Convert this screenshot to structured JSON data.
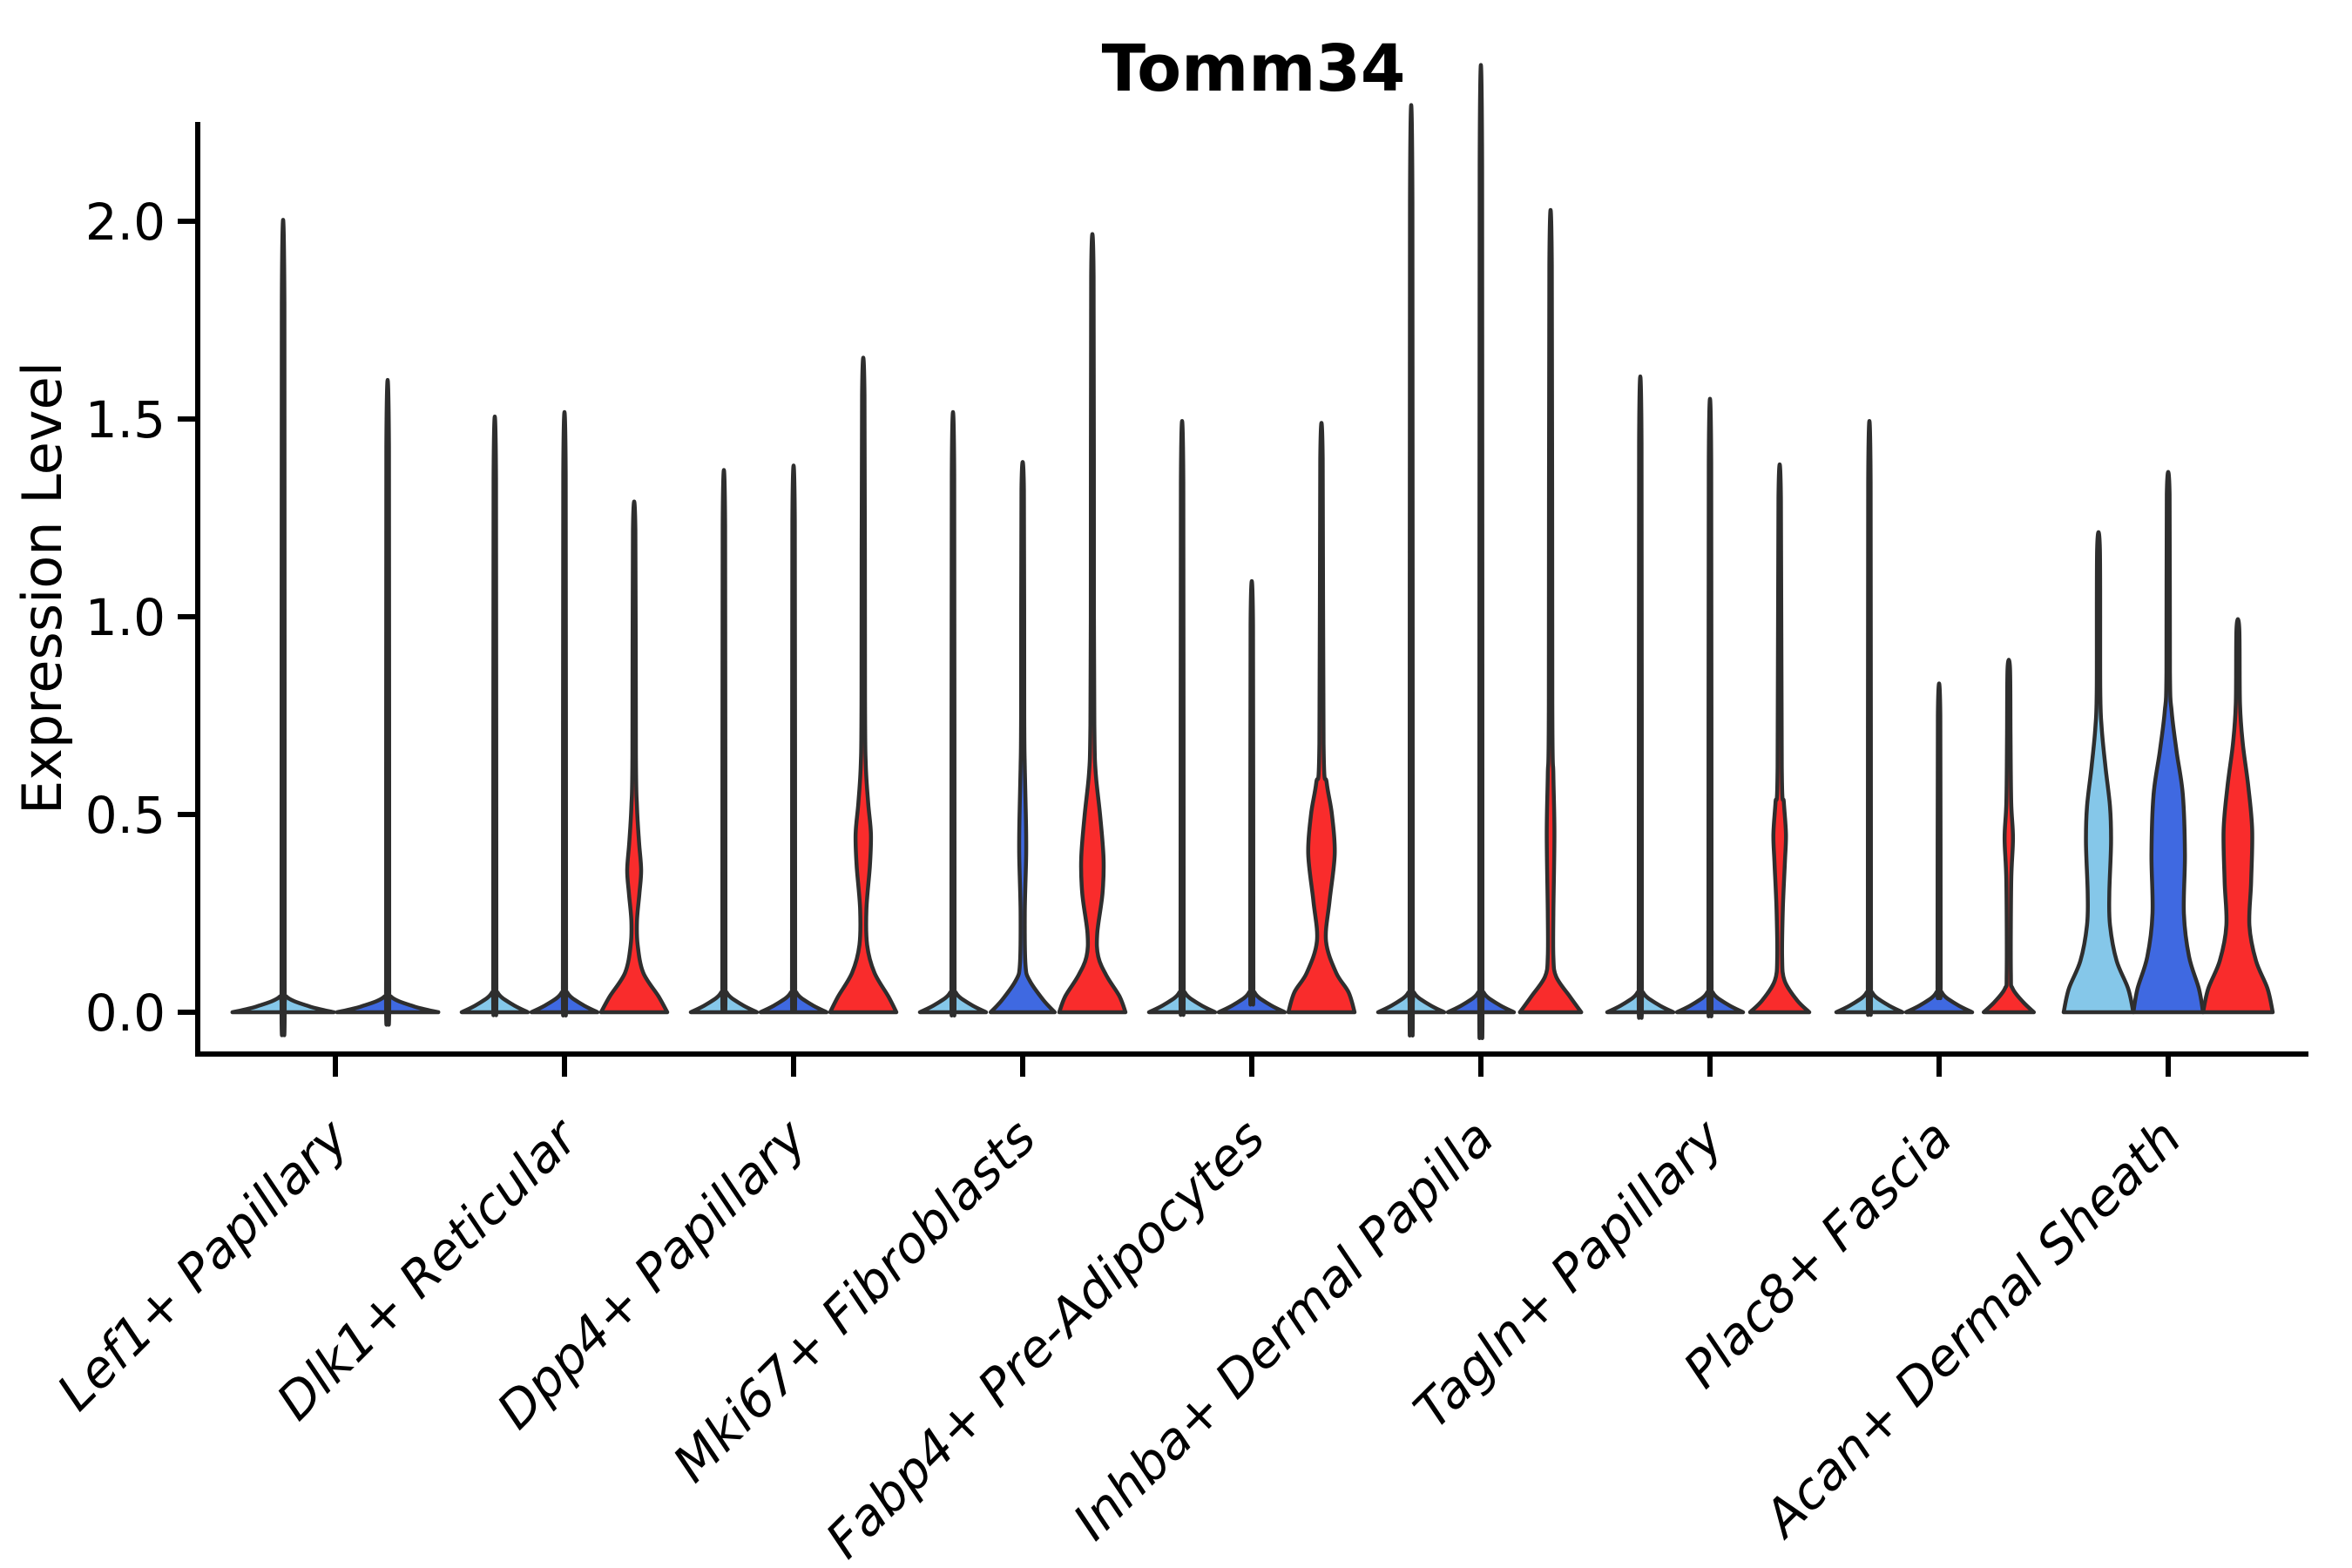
{
  "chart_data": {
    "type": "violin",
    "title": "Tomm34",
    "ylabel": "Expression Level",
    "xlabel": "",
    "grid": false,
    "legend": "none",
    "background": "#ffffff",
    "ylim": [
      -0.11,
      2.25
    ],
    "yticks": [
      "0.0",
      "0.5",
      "1.0",
      "1.5",
      "2.0"
    ],
    "ytick_values": [
      0.0,
      0.5,
      1.0,
      1.5,
      2.0
    ],
    "palette": {
      "light_blue": "#85C7E9",
      "blue": "#3F69E1",
      "red": "#F92C2C",
      "outline": "#2E2E2E",
      "axis": "#000000"
    },
    "categories": [
      "Lef1+ Papillary",
      "Dlk1+ Reticular",
      "Dpp4+ Papillary",
      "Mki67+ Fibroblasts",
      "Fabp4+ Pre-Adipocytes",
      "Inhba+ Dermal Papilla",
      "Tagln+ Papillary",
      "Plac8+ Fascia",
      "Acan+ Dermal Sheath"
    ],
    "groups": [
      {
        "category": "Lef1+ Papillary",
        "violins": [
          {
            "series": "light_blue",
            "max_expression": 1.79,
            "profile": [
              [
                0,
                0.97
              ],
              [
                0.015,
                0.5
              ],
              [
                0.04,
                0.06
              ],
              [
                0.08,
                0.03
              ],
              [
                1.79,
                0.025
              ]
            ]
          },
          {
            "series": "blue",
            "max_expression": 1.43,
            "profile": [
              [
                0,
                0.97
              ],
              [
                0.015,
                0.5
              ],
              [
                0.04,
                0.06
              ],
              [
                0.08,
                0.03
              ],
              [
                1.43,
                0.025
              ]
            ]
          }
        ]
      },
      {
        "category": "Dlk1+ Reticular",
        "violins": [
          {
            "series": "light_blue",
            "max_expression": 1.35,
            "profile": [
              [
                0,
                0.95
              ],
              [
                0.02,
                0.5
              ],
              [
                0.05,
                0.08
              ],
              [
                0.1,
                0.045
              ],
              [
                1.35,
                0.035
              ]
            ]
          },
          {
            "series": "blue",
            "max_expression": 1.36,
            "profile": [
              [
                0,
                0.95
              ],
              [
                0.02,
                0.5
              ],
              [
                0.05,
                0.08
              ],
              [
                0.1,
                0.045
              ],
              [
                1.36,
                0.035
              ]
            ]
          },
          {
            "series": "red",
            "max_expression": 1.22,
            "profile": [
              [
                0,
                0.95
              ],
              [
                0.04,
                0.7
              ],
              [
                0.1,
                0.26
              ],
              [
                0.17,
                0.1
              ],
              [
                0.23,
                0.08
              ],
              [
                0.3,
                0.15
              ],
              [
                0.36,
                0.2
              ],
              [
                0.43,
                0.14
              ],
              [
                0.52,
                0.08
              ],
              [
                0.65,
                0.05
              ],
              [
                1.22,
                0.035
              ]
            ]
          }
        ]
      },
      {
        "category": "Dpp4+ Papillary",
        "violins": [
          {
            "series": "light_blue",
            "max_expression": 1.23,
            "profile": [
              [
                0,
                0.95
              ],
              [
                0.02,
                0.5
              ],
              [
                0.05,
                0.08
              ],
              [
                0.1,
                0.045
              ],
              [
                1.23,
                0.035
              ]
            ]
          },
          {
            "series": "blue",
            "max_expression": 1.24,
            "profile": [
              [
                0,
                0.95
              ],
              [
                0.02,
                0.5
              ],
              [
                0.05,
                0.08
              ],
              [
                0.1,
                0.045
              ],
              [
                1.24,
                0.035
              ]
            ]
          },
          {
            "series": "red",
            "max_expression": 1.56,
            "profile": [
              [
                0,
                0.95
              ],
              [
                0.04,
                0.72
              ],
              [
                0.1,
                0.32
              ],
              [
                0.17,
                0.11
              ],
              [
                0.26,
                0.09
              ],
              [
                0.37,
                0.19
              ],
              [
                0.45,
                0.22
              ],
              [
                0.53,
                0.14
              ],
              [
                0.63,
                0.07
              ],
              [
                0.8,
                0.05
              ],
              [
                1.56,
                0.035
              ]
            ]
          }
        ]
      },
      {
        "category": "Mki67+ Fibroblasts",
        "violins": [
          {
            "series": "light_blue",
            "max_expression": 1.36,
            "profile": [
              [
                0,
                0.95
              ],
              [
                0.02,
                0.5
              ],
              [
                0.05,
                0.08
              ],
              [
                0.1,
                0.045
              ],
              [
                1.36,
                0.035
              ]
            ]
          },
          {
            "series": "blue",
            "max_expression": 1.32,
            "profile": [
              [
                0,
                0.92
              ],
              [
                0.03,
                0.6
              ],
              [
                0.08,
                0.2
              ],
              [
                0.12,
                0.08
              ],
              [
                0.25,
                0.06
              ],
              [
                0.4,
                0.1
              ],
              [
                0.5,
                0.09
              ],
              [
                0.62,
                0.06
              ],
              [
                0.75,
                0.045
              ],
              [
                1.32,
                0.035
              ]
            ]
          },
          {
            "series": "red",
            "max_expression": 1.86,
            "profile": [
              [
                0,
                0.95
              ],
              [
                0.04,
                0.78
              ],
              [
                0.09,
                0.42
              ],
              [
                0.14,
                0.17
              ],
              [
                0.2,
                0.14
              ],
              [
                0.3,
                0.29
              ],
              [
                0.39,
                0.32
              ],
              [
                0.5,
                0.22
              ],
              [
                0.6,
                0.1
              ],
              [
                0.7,
                0.06
              ],
              [
                1.0,
                0.045
              ],
              [
                1.86,
                0.035
              ]
            ]
          }
        ]
      },
      {
        "category": "Fabp4+ Pre-Adipocytes",
        "violins": [
          {
            "series": "light_blue",
            "max_expression": 1.34,
            "profile": [
              [
                0,
                0.95
              ],
              [
                0.02,
                0.5
              ],
              [
                0.05,
                0.08
              ],
              [
                0.1,
                0.045
              ],
              [
                1.34,
                0.035
              ]
            ]
          },
          {
            "series": "blue",
            "max_expression": 0.98,
            "profile": [
              [
                0,
                0.95
              ],
              [
                0.02,
                0.5
              ],
              [
                0.05,
                0.08
              ],
              [
                0.1,
                0.045
              ],
              [
                0.98,
                0.035
              ]
            ]
          },
          {
            "series": "red",
            "max_expression": 1.4,
            "profile": [
              [
                0,
                0.95
              ],
              [
                0.05,
                0.78
              ],
              [
                0.1,
                0.42
              ],
              [
                0.18,
                0.13
              ],
              [
                0.28,
                0.23
              ],
              [
                0.4,
                0.38
              ],
              [
                0.5,
                0.3
              ],
              [
                0.58,
                0.15
              ],
              [
                0.68,
                0.06
              ],
              [
                1.4,
                0.035
              ]
            ]
          }
        ]
      },
      {
        "category": "Inhba+ Dermal Papilla",
        "violins": [
          {
            "series": "light_blue",
            "max_expression": 2.05,
            "profile": [
              [
                0,
                0.95
              ],
              [
                0.02,
                0.5
              ],
              [
                0.05,
                0.08
              ],
              [
                0.1,
                0.045
              ],
              [
                2.05,
                0.035
              ]
            ]
          },
          {
            "series": "blue",
            "max_expression": 2.14,
            "profile": [
              [
                0,
                0.95
              ],
              [
                0.02,
                0.5
              ],
              [
                0.05,
                0.08
              ],
              [
                0.1,
                0.045
              ],
              [
                2.14,
                0.035
              ]
            ]
          },
          {
            "series": "red",
            "max_expression": 1.89,
            "profile": [
              [
                0,
                0.88
              ],
              [
                0.04,
                0.55
              ],
              [
                0.09,
                0.16
              ],
              [
                0.14,
                0.08
              ],
              [
                0.25,
                0.08
              ],
              [
                0.45,
                0.11
              ],
              [
                0.6,
                0.08
              ],
              [
                0.78,
                0.05
              ],
              [
                1.89,
                0.035
              ]
            ]
          }
        ]
      },
      {
        "category": "Tagln+ Papillary",
        "violins": [
          {
            "series": "light_blue",
            "max_expression": 1.44,
            "profile": [
              [
                0,
                0.95
              ],
              [
                0.02,
                0.5
              ],
              [
                0.05,
                0.08
              ],
              [
                0.1,
                0.045
              ],
              [
                1.44,
                0.035
              ]
            ]
          },
          {
            "series": "blue",
            "max_expression": 1.39,
            "profile": [
              [
                0,
                0.95
              ],
              [
                0.02,
                0.5
              ],
              [
                0.05,
                0.08
              ],
              [
                0.1,
                0.045
              ],
              [
                1.39,
                0.035
              ]
            ]
          },
          {
            "series": "red",
            "max_expression": 1.3,
            "profile": [
              [
                0,
                0.85
              ],
              [
                0.03,
                0.5
              ],
              [
                0.08,
                0.14
              ],
              [
                0.14,
                0.07
              ],
              [
                0.26,
                0.09
              ],
              [
                0.38,
                0.15
              ],
              [
                0.45,
                0.18
              ],
              [
                0.53,
                0.12
              ],
              [
                0.62,
                0.06
              ],
              [
                1.3,
                0.035
              ]
            ]
          }
        ]
      },
      {
        "category": "Plac8+ Fascia",
        "violins": [
          {
            "series": "light_blue",
            "max_expression": 1.34,
            "profile": [
              [
                0,
                0.95
              ],
              [
                0.02,
                0.5
              ],
              [
                0.05,
                0.08
              ],
              [
                0.1,
                0.045
              ],
              [
                1.34,
                0.035
              ]
            ]
          },
          {
            "series": "blue",
            "max_expression": 0.75,
            "profile": [
              [
                0,
                0.95
              ],
              [
                0.02,
                0.5
              ],
              [
                0.05,
                0.08
              ],
              [
                0.1,
                0.045
              ],
              [
                0.75,
                0.035
              ]
            ]
          },
          {
            "series": "red",
            "max_expression": 0.87,
            "profile": [
              [
                0,
                0.72
              ],
              [
                0.025,
                0.42
              ],
              [
                0.06,
                0.11
              ],
              [
                0.1,
                0.06
              ],
              [
                0.33,
                0.07
              ],
              [
                0.44,
                0.12
              ],
              [
                0.53,
                0.07
              ],
              [
                0.7,
                0.05
              ],
              [
                0.87,
                0.035
              ]
            ]
          }
        ]
      },
      {
        "category": "Acan+ Dermal Sheath",
        "violins": [
          {
            "series": "light_blue",
            "max_expression": 1.17,
            "profile": [
              [
                0,
                1.0
              ],
              [
                0.06,
                0.85
              ],
              [
                0.13,
                0.52
              ],
              [
                0.22,
                0.33
              ],
              [
                0.3,
                0.31
              ],
              [
                0.43,
                0.36
              ],
              [
                0.52,
                0.33
              ],
              [
                0.62,
                0.2
              ],
              [
                0.72,
                0.09
              ],
              [
                0.82,
                0.05
              ],
              [
                1.17,
                0.04
              ]
            ]
          },
          {
            "series": "blue",
            "max_expression": 1.31,
            "profile": [
              [
                0,
                1.0
              ],
              [
                0.06,
                0.88
              ],
              [
                0.14,
                0.6
              ],
              [
                0.25,
                0.45
              ],
              [
                0.4,
                0.48
              ],
              [
                0.55,
                0.42
              ],
              [
                0.66,
                0.24
              ],
              [
                0.76,
                0.1
              ],
              [
                0.86,
                0.05
              ],
              [
                1.31,
                0.04
              ]
            ]
          },
          {
            "series": "red",
            "max_expression": 0.97,
            "profile": [
              [
                0,
                1.0
              ],
              [
                0.06,
                0.85
              ],
              [
                0.13,
                0.52
              ],
              [
                0.22,
                0.33
              ],
              [
                0.33,
                0.38
              ],
              [
                0.46,
                0.41
              ],
              [
                0.57,
                0.3
              ],
              [
                0.68,
                0.14
              ],
              [
                0.78,
                0.06
              ],
              [
                0.97,
                0.04
              ]
            ]
          }
        ]
      }
    ]
  }
}
